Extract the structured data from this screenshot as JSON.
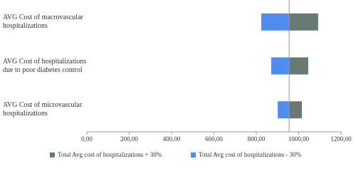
{
  "chart_data": {
    "type": "tornado",
    "categories": [
      "AVG Cost of macrovascular hospitalizations",
      "AVG Cost of hospitalizations due to poor diabetes control",
      "AVG Cost of microvascular hospitalizations"
    ],
    "base": 955,
    "series": [
      {
        "name": "Total Avg cost of hospitalizations + 30%",
        "color": "#687a76",
        "values": [
          1092,
          1045,
          1015
        ]
      },
      {
        "name": "Total Avg cost of hospitalizations - 30%",
        "color": "#4f8ef0",
        "values": [
          823,
          870,
          901
        ]
      }
    ],
    "xlim": [
      0,
      1200
    ],
    "xticks": [
      {
        "value": 0,
        "label": "0,00"
      },
      {
        "value": 200,
        "label": "200,00"
      },
      {
        "value": 400,
        "label": "400,00"
      },
      {
        "value": 600,
        "label": "600,00"
      },
      {
        "value": 800,
        "label": "800,00"
      },
      {
        "value": 1000,
        "label": "1000,00"
      },
      {
        "value": 1200,
        "label": "1200,00"
      }
    ]
  }
}
